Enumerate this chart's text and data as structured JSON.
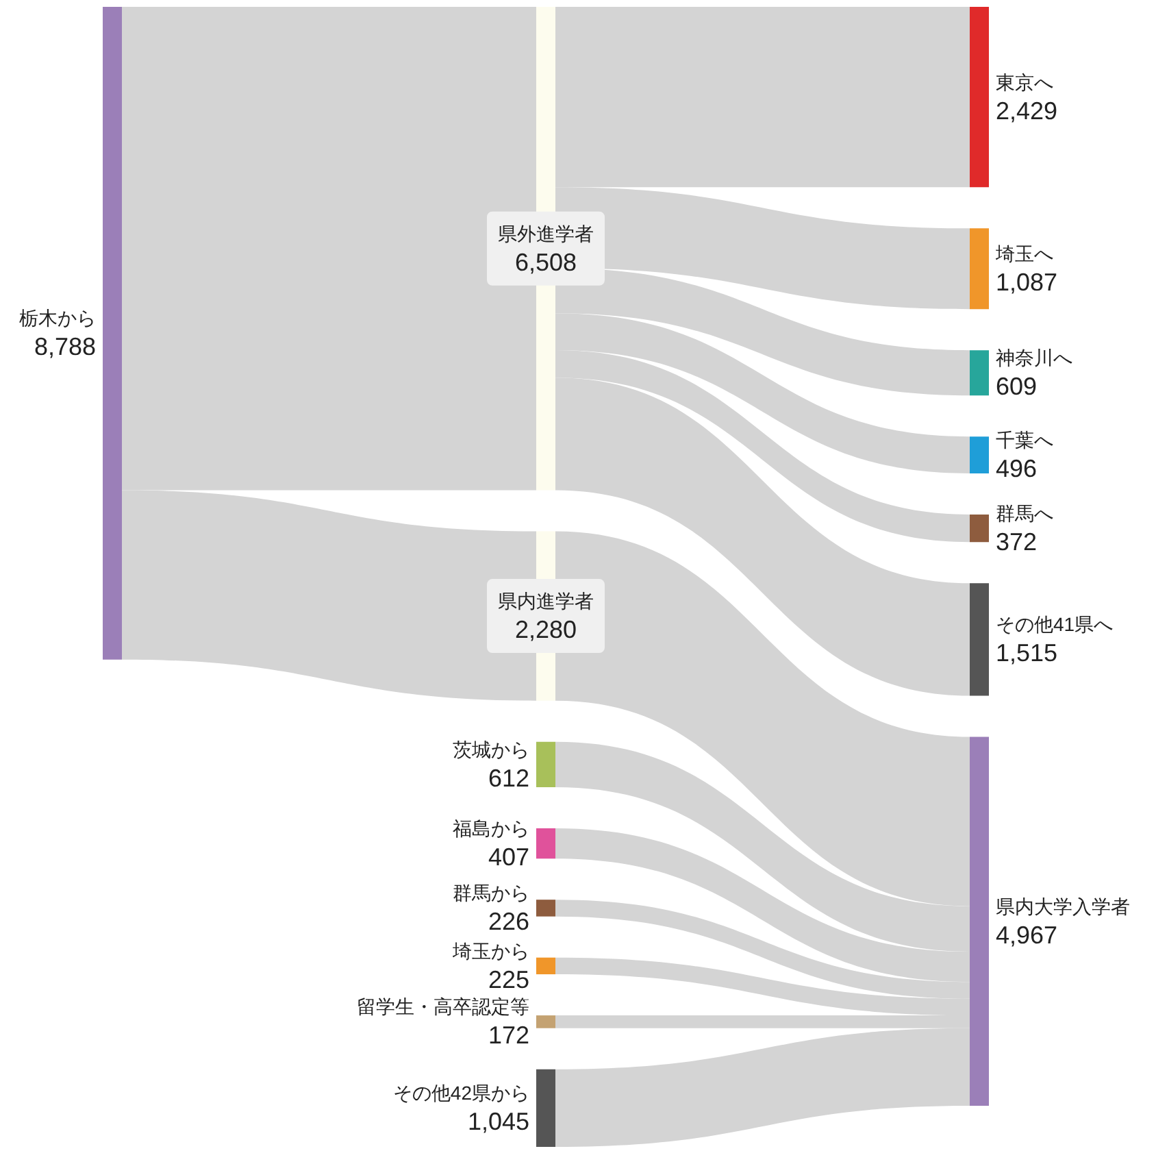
{
  "chart_data": {
    "type": "other",
    "categories": [
      "栃木から",
      "県外進学者",
      "県内進学者",
      "茨城から",
      "福島から",
      "群馬から",
      "埼玉から",
      "留学生・高卒認定等",
      "その他42県から",
      "東京へ",
      "埼玉へ",
      "神奈川へ",
      "千葉へ",
      "群馬へ",
      "その他41県へ",
      "県内大学入学者"
    ],
    "series": [
      {
        "values": [
          8788,
          null,
          null,
          null,
          null,
          null,
          null,
          null,
          null,
          null,
          null,
          null,
          null,
          null,
          null,
          null
        ],
        "value_labels": [
          "8,788",
          null,
          null,
          null,
          null,
          null,
          null,
          null,
          null,
          null,
          null,
          null,
          null,
          null,
          null,
          null
        ],
        "colors": [
          "#9b7fb8",
          null,
          null,
          null,
          null,
          null,
          null,
          null,
          null,
          null,
          null,
          null,
          null,
          null,
          null,
          null
        ]
      },
      {
        "values": [
          null,
          6508,
          2280,
          612,
          407,
          226,
          225,
          172,
          1045,
          null,
          null,
          null,
          null,
          null,
          null,
          null
        ],
        "value_labels": [
          null,
          "6,508",
          "2,280",
          "612",
          "407",
          "226",
          "225",
          "172",
          "1,045",
          null,
          null,
          null,
          null,
          null,
          null,
          null
        ],
        "colors": [
          null,
          "#fdfcee",
          "#fdfcee",
          "#a8c05a",
          "#e0529b",
          "#8e5c3e",
          "#f0962a",
          "#c4a272",
          "#555555",
          null,
          null,
          null,
          null,
          null,
          null,
          null
        ]
      },
      {
        "values": [
          null,
          null,
          null,
          null,
          null,
          null,
          null,
          null,
          null,
          2429,
          1087,
          609,
          496,
          372,
          1515,
          4967
        ],
        "value_labels": [
          null,
          null,
          null,
          null,
          null,
          null,
          null,
          null,
          null,
          "2,429",
          "1,087",
          "609",
          "496",
          "372",
          "1,515",
          "4,967"
        ],
        "colors": [
          null,
          null,
          null,
          null,
          null,
          null,
          null,
          null,
          null,
          "#e02a2a",
          "#f0962a",
          "#27a69b",
          "#1f9ed8",
          "#8e5c3e",
          "#555555",
          "#9b7fb8"
        ]
      }
    ]
  }
}
